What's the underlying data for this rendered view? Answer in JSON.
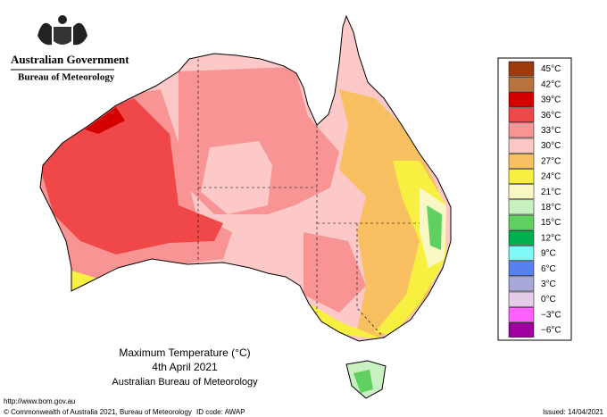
{
  "header": {
    "government": "Australian Government",
    "agency": "Bureau of Meteorology"
  },
  "legend": {
    "items": [
      {
        "label": "45°C",
        "color": "#9c3c0c"
      },
      {
        "label": "42°C",
        "color": "#b8743c"
      },
      {
        "label": "39°C",
        "color": "#d40000"
      },
      {
        "label": "36°C",
        "color": "#f04848"
      },
      {
        "label": "33°C",
        "color": "#f89494"
      },
      {
        "label": "30°C",
        "color": "#fcc8c8"
      },
      {
        "label": "27°C",
        "color": "#f8c060"
      },
      {
        "label": "24°C",
        "color": "#f8f040"
      },
      {
        "label": "21°C",
        "color": "#f8f8c4"
      },
      {
        "label": "18°C",
        "color": "#c8f0c0"
      },
      {
        "label": "15°C",
        "color": "#60d060"
      },
      {
        "label": "12°C",
        "color": "#00b050"
      },
      {
        "label": "9°C",
        "color": "#80f8f8"
      },
      {
        "label": "6°C",
        "color": "#5880f0"
      },
      {
        "label": "3°C",
        "color": "#a8a8d8"
      },
      {
        "label": "0°C",
        "color": "#e4cce8"
      },
      {
        "label": "−3°C",
        "color": "#ff60ff"
      },
      {
        "label": "−6°C",
        "color": "#a000a0"
      }
    ]
  },
  "map_title": {
    "line1": "Maximum Temperature (°C)",
    "line2": "4th April 2021",
    "line3": "Australian Bureau of Meteorology"
  },
  "footer": {
    "url": "http://www.bom.gov.au",
    "copyright": "© Commonwealth of Australia 2021, Bureau of Meteorology",
    "id_code": "ID code: AWAP",
    "issued": "Issued: 14/04/2021"
  }
}
